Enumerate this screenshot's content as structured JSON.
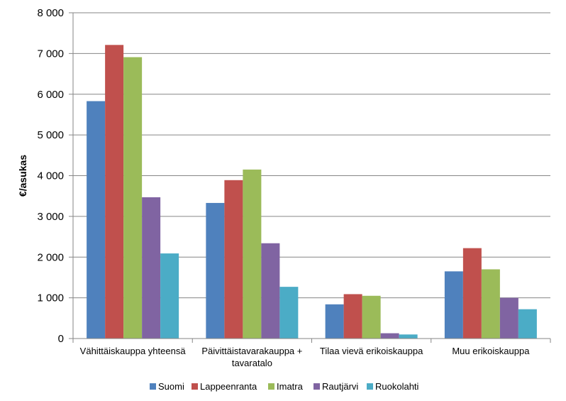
{
  "chart_data": {
    "type": "bar",
    "ylabel": "€/asukas",
    "ylim": [
      0,
      8000
    ],
    "yticks": [
      0,
      1000,
      2000,
      3000,
      4000,
      5000,
      6000,
      7000,
      8000
    ],
    "ytick_labels": [
      "0",
      "1 000",
      "2 000",
      "3 000",
      "4 000",
      "5 000",
      "6 000",
      "7 000",
      "8 000"
    ],
    "grid": true,
    "legend_position": "bottom",
    "categories": [
      [
        "Vähittäiskauppa yhteensä"
      ],
      [
        "Päivittäistavarakauppa +",
        "tavaratalo"
      ],
      [
        "Tilaa vievä erikoiskauppa"
      ],
      [
        "Muu erikoiskauppa"
      ]
    ],
    "series": [
      {
        "name": "Suomi",
        "color": "#4F81BD",
        "values": [
          5830,
          3330,
          840,
          1650
        ]
      },
      {
        "name": "Lappeenranta",
        "color": "#C0504D",
        "values": [
          7210,
          3890,
          1090,
          2220
        ]
      },
      {
        "name": "Imatra",
        "color": "#9BBB59",
        "values": [
          6910,
          4150,
          1050,
          1700
        ]
      },
      {
        "name": "Rautjärvi",
        "color": "#8064A2",
        "values": [
          3470,
          2340,
          130,
          1000
        ]
      },
      {
        "name": "Ruokolahti",
        "color": "#4BACC6",
        "values": [
          2090,
          1270,
          100,
          720
        ]
      }
    ]
  }
}
